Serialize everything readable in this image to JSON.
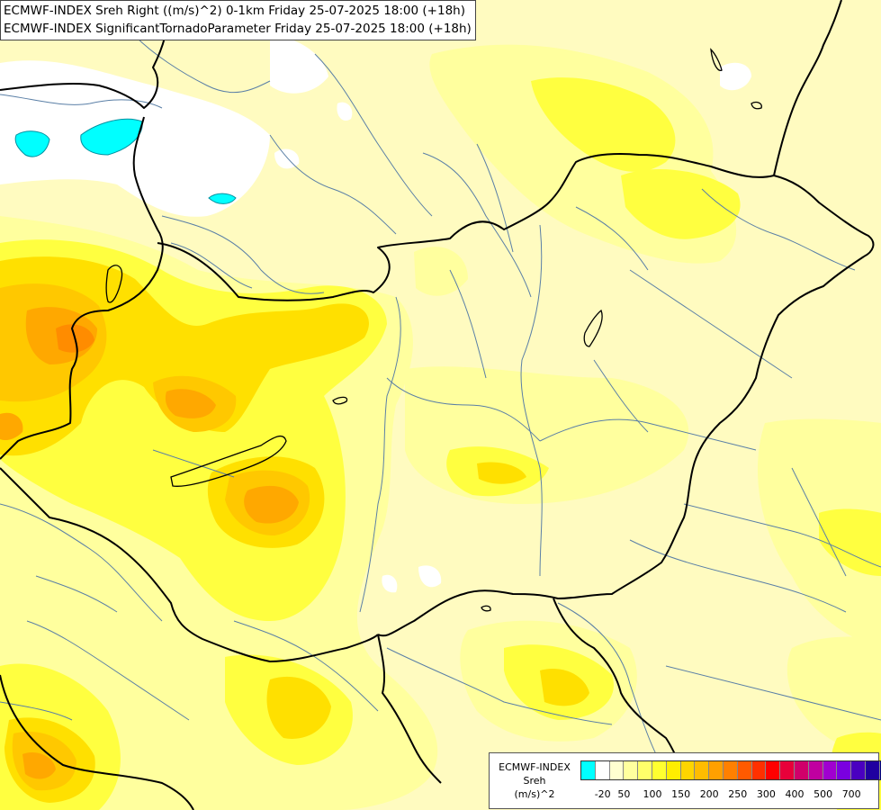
{
  "title": {
    "line1": "ECMWF-INDEX Sreh Right ((m/s)^2) 0-1km Friday 25-07-2025 18:00 (+18h)",
    "line2": "ECMWF-INDEX SignificantTornadoParameter Friday 25-07-2025 18:00 (+18h)"
  },
  "legend": {
    "line1": "ECMWF-INDEX",
    "line2": "Sreh",
    "line3": "(m/s)^2",
    "colors": [
      "#00ffff",
      "#ffffff",
      "#ffffd0",
      "#ffff9e",
      "#ffff6a",
      "#ffff30",
      "#ffee00",
      "#ffd500",
      "#ffbc00",
      "#ffa000",
      "#ff8000",
      "#ff5a00",
      "#ff3000",
      "#ff0000",
      "#e8003a",
      "#d0006a",
      "#c000a0",
      "#a000d0",
      "#7a00e0",
      "#4a00c0",
      "#2000a0",
      "#000080"
    ],
    "ticks": [
      "-20",
      "50",
      "100",
      "150",
      "200",
      "250",
      "300",
      "400",
      "500",
      "700"
    ]
  },
  "map_colors": {
    "base": "#fffbc0",
    "light": "#ffff9e",
    "yellow": "#ffff40",
    "gold": "#ffe000",
    "amber": "#ffc800",
    "orange": "#ffa800",
    "dark_orange": "#ff8c00",
    "white": "#ffffff",
    "cyan": "#00ffff",
    "border": "#000000",
    "river": "#5a7fa6"
  }
}
